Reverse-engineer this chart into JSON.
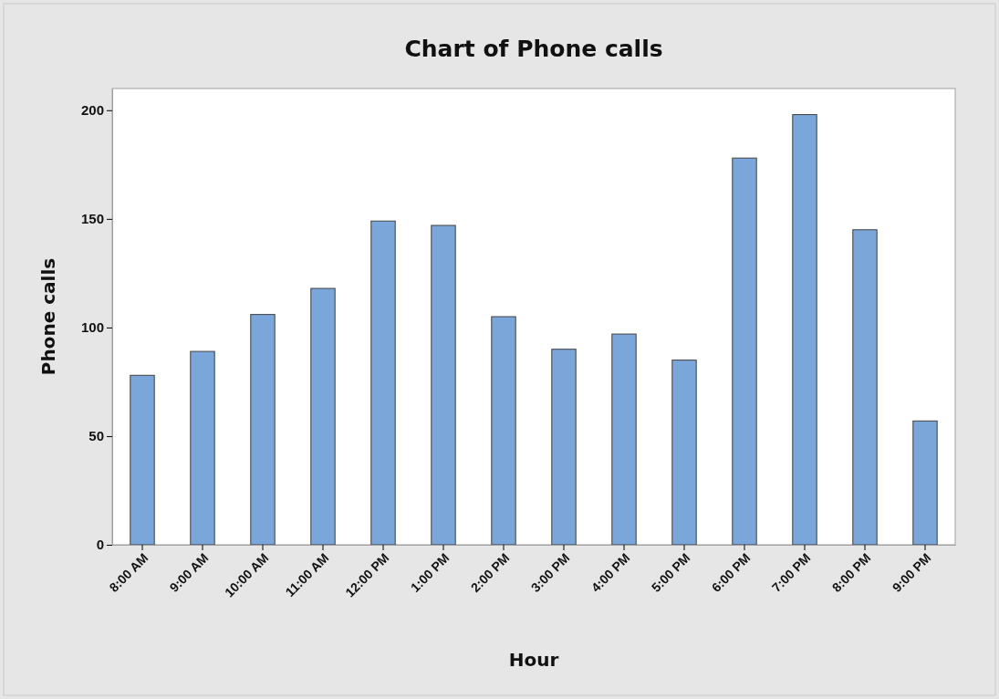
{
  "chart_data": {
    "type": "bar",
    "title": "Chart of Phone calls",
    "xlabel": "Hour",
    "ylabel": "Phone calls",
    "categories": [
      "8:00 AM",
      "9:00 AM",
      "10:00 AM",
      "11:00 AM",
      "12:00 PM",
      "1:00 PM",
      "2:00 PM",
      "3:00 PM",
      "4:00 PM",
      "5:00 PM",
      "6:00 PM",
      "7:00 PM",
      "8:00 PM",
      "9:00 PM"
    ],
    "values": [
      78,
      89,
      106,
      118,
      149,
      147,
      105,
      90,
      97,
      85,
      178,
      198,
      145,
      57
    ],
    "color": "#7ba6d9",
    "ylim": [
      0,
      210
    ],
    "yticks": [
      0,
      50,
      100,
      150,
      200
    ],
    "grid": false
  }
}
